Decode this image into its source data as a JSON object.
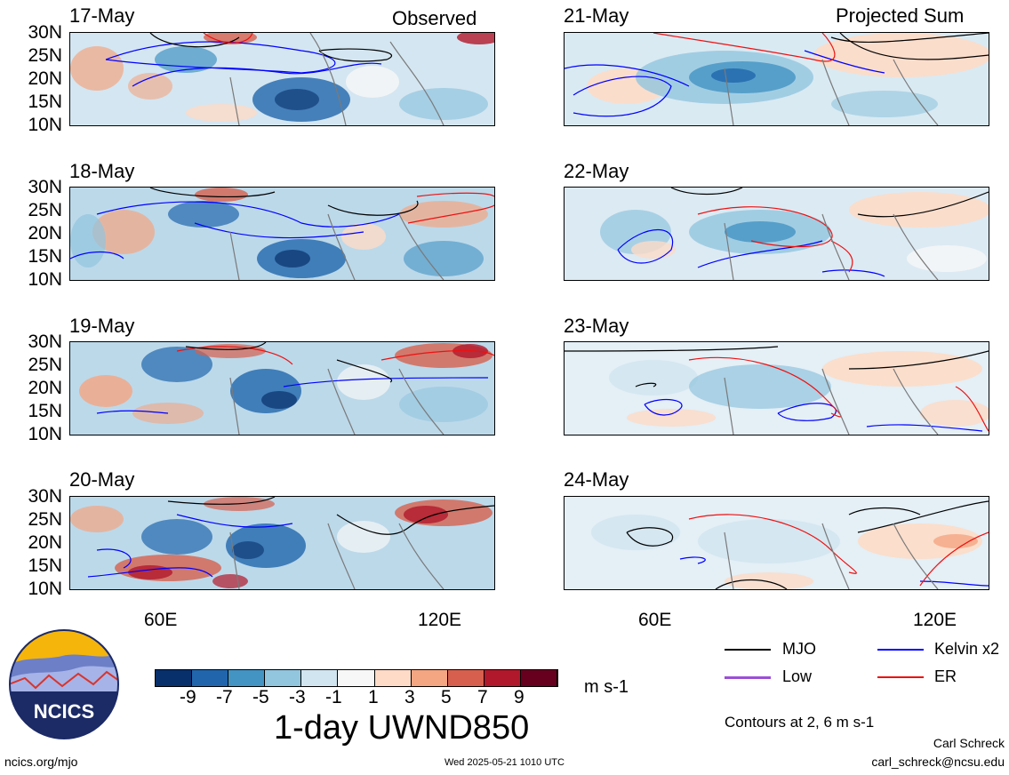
{
  "header": {
    "left_title": "Observed",
    "right_title": "Projected Sum"
  },
  "panels_observed": [
    {
      "date": "17-May"
    },
    {
      "date": "18-May"
    },
    {
      "date": "19-May"
    },
    {
      "date": "20-May"
    }
  ],
  "panels_projected": [
    {
      "date": "21-May"
    },
    {
      "date": "22-May"
    },
    {
      "date": "23-May"
    },
    {
      "date": "24-May"
    }
  ],
  "lat_ticks": [
    "30N",
    "25N",
    "20N",
    "15N",
    "10N"
  ],
  "lon_ticks": [
    "60E",
    "120E"
  ],
  "colorbar": {
    "labels": [
      "-9",
      "-7",
      "-5",
      "-3",
      "-1",
      "1",
      "3",
      "5",
      "7",
      "9"
    ],
    "colors": [
      "#08306b",
      "#2166ac",
      "#4393c3",
      "#92c5de",
      "#d1e5f0",
      "#f7f7f7",
      "#fddbc7",
      "#f4a582",
      "#d6604d",
      "#b2182b",
      "#67001f"
    ],
    "units": "m s-1",
    "title": "1-day UWND850"
  },
  "legend": {
    "items": [
      {
        "label": "MJO",
        "color": "#000000"
      },
      {
        "label": "Kelvin x2",
        "color": "#0000ff"
      },
      {
        "label": "Low",
        "color": "#9b4fd6"
      },
      {
        "label": "ER",
        "color": "#ee1111"
      }
    ],
    "note": "Contours at 2, 6 m s-1"
  },
  "logo": {
    "text": "NCICS"
  },
  "footer": {
    "url": "ncics.org/mjo",
    "timestamp": "Wed 2025-05-21 1010 UTC",
    "author": "Carl Schreck",
    "email": "carl_schreck@ncsu.edu"
  }
}
